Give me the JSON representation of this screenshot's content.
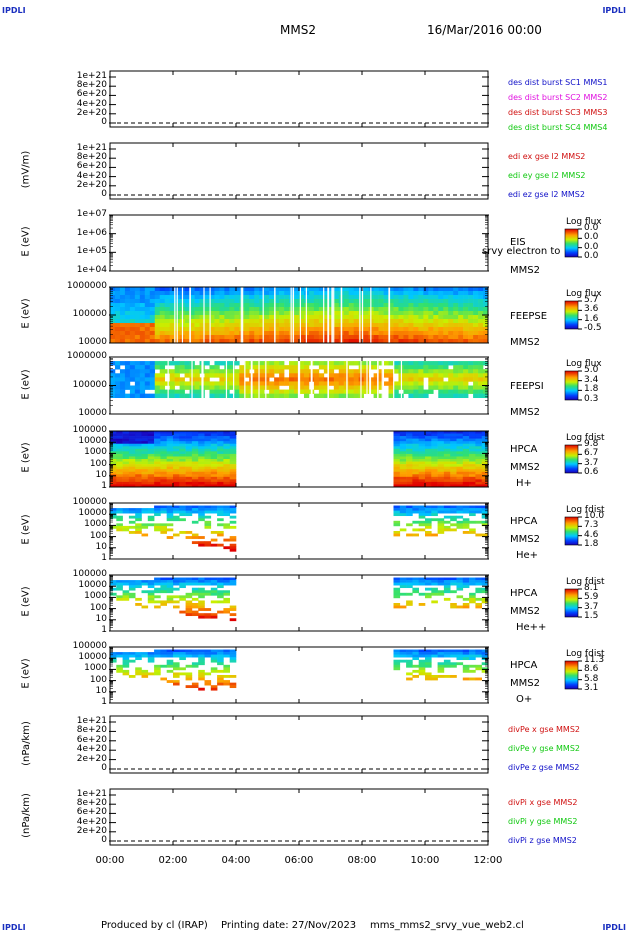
{
  "corners": {
    "tl": "IPDLI",
    "tr": "IPDLI",
    "bl": "IPDLI",
    "br": "IPDLI"
  },
  "header": {
    "title": "MMS2",
    "date": "16/Mar/2016 00:00"
  },
  "footer": {
    "produced": "Produced by cl (IRAP)",
    "printing": "Printing date: 27/Nov/2023",
    "file": "mms_mms2_srvy_vue_web2.cl"
  },
  "chart_data": {
    "type": "table",
    "x_ticks": [
      "00:00",
      "02:00",
      "04:00",
      "06:00",
      "08:00",
      "10:00",
      "12:00"
    ],
    "panels": [
      {
        "id": "p1",
        "ylabel": "",
        "ticks": [
          "1e+21",
          "8e+20",
          "6e+20",
          "4e+20",
          "2e+20",
          "0"
        ],
        "legend": [
          {
            "text": "des dist burst SC1 MMS1",
            "color": "#1010c8"
          },
          {
            "text": "des dist burst SC2 MMS2",
            "color": "#e010e0"
          },
          {
            "text": "des dist burst SC3 MMS3",
            "color": "#d01010"
          },
          {
            "text": "des dist burst SC4 MMS4",
            "color": "#10c810"
          }
        ]
      },
      {
        "id": "p2",
        "ylabel": "(mV/m)",
        "ticks": [
          "1e+21",
          "8e+20",
          "6e+20",
          "4e+20",
          "2e+20",
          "0"
        ],
        "legend": [
          {
            "text": "edi ex gse l2 MMS2",
            "color": "#d01010"
          },
          {
            "text": "edi ey gse l2 MMS2",
            "color": "#10c810"
          },
          {
            "text": "edi ez gse l2 MMS2",
            "color": "#1010c8"
          }
        ]
      },
      {
        "id": "p3",
        "ylabel": "E (eV)",
        "ticks": [
          "1e+07",
          "1e+06",
          "1e+05",
          "1e+04"
        ],
        "inst": [
          "EIS",
          "MMS2"
        ],
        "overlay": "srvy electron to",
        "cb_title": "Log flux",
        "cb_ticks": [
          "0.0",
          "0.0",
          "0.0",
          "0.0"
        ]
      },
      {
        "id": "p4",
        "ylabel": "E (eV)",
        "ticks": [
          "1000000",
          "100000",
          "10000"
        ],
        "inst": [
          "FEEPSE",
          "MMS2"
        ],
        "cb_title": "Log flux",
        "cb_ticks": [
          "5.7",
          "3.6",
          "1.6",
          "-0.5"
        ]
      },
      {
        "id": "p5",
        "ylabel": "E (eV)",
        "ticks": [
          "1000000",
          "100000",
          "10000"
        ],
        "inst": [
          "FEEPSI",
          "MMS2"
        ],
        "cb_title": "Log flux",
        "cb_ticks": [
          "5.0",
          "3.4",
          "1.8",
          "0.3"
        ]
      },
      {
        "id": "p6",
        "ylabel": "E (eV)",
        "ticks": [
          "100000",
          "10000",
          "1000",
          "100",
          "10",
          "1"
        ],
        "inst": [
          "HPCA",
          "MMS2",
          "H+"
        ],
        "cb_title": "Log fdist",
        "cb_ticks": [
          "9.8",
          "6.7",
          "3.7",
          "0.6"
        ]
      },
      {
        "id": "p7",
        "ylabel": "E (eV)",
        "ticks": [
          "100000",
          "10000",
          "1000",
          "100",
          "10",
          "1"
        ],
        "inst": [
          "HPCA",
          "MMS2",
          "He+"
        ],
        "cb_title": "Log fdist",
        "cb_ticks": [
          "10.0",
          "7.3",
          "4.6",
          "1.8"
        ]
      },
      {
        "id": "p8",
        "ylabel": "E (eV)",
        "ticks": [
          "100000",
          "10000",
          "1000",
          "100",
          "10",
          "1"
        ],
        "inst": [
          "HPCA",
          "MMS2",
          "He++"
        ],
        "cb_title": "Log fdist",
        "cb_ticks": [
          "8.1",
          "5.9",
          "3.7",
          "1.5"
        ]
      },
      {
        "id": "p9",
        "ylabel": "E (eV)",
        "ticks": [
          "100000",
          "10000",
          "1000",
          "100",
          "10",
          "1"
        ],
        "inst": [
          "HPCA",
          "MMS2",
          "O+"
        ],
        "cb_title": "Log fdist",
        "cb_ticks": [
          "11.3",
          "8.6",
          "5.8",
          "3.1"
        ]
      },
      {
        "id": "p10",
        "ylabel": "(nPa/km)",
        "ticks": [
          "1e+21",
          "8e+20",
          "6e+20",
          "4e+20",
          "2e+20",
          "0"
        ],
        "legend": [
          {
            "text": "divPe x gse MMS2",
            "color": "#d01010"
          },
          {
            "text": "divPe y gse MMS2",
            "color": "#10c810"
          },
          {
            "text": "divPe z gse MMS2",
            "color": "#1010c8"
          }
        ]
      },
      {
        "id": "p11",
        "ylabel": "(nPa/km)",
        "ticks": [
          "1e+21",
          "8e+20",
          "6e+20",
          "4e+20",
          "2e+20",
          "0"
        ],
        "legend": [
          {
            "text": "divPi x gse MMS2",
            "color": "#d01010"
          },
          {
            "text": "divPi y gse MMS2",
            "color": "#10c810"
          },
          {
            "text": "divPi z gse MMS2",
            "color": "#1010c8"
          }
        ]
      }
    ]
  }
}
